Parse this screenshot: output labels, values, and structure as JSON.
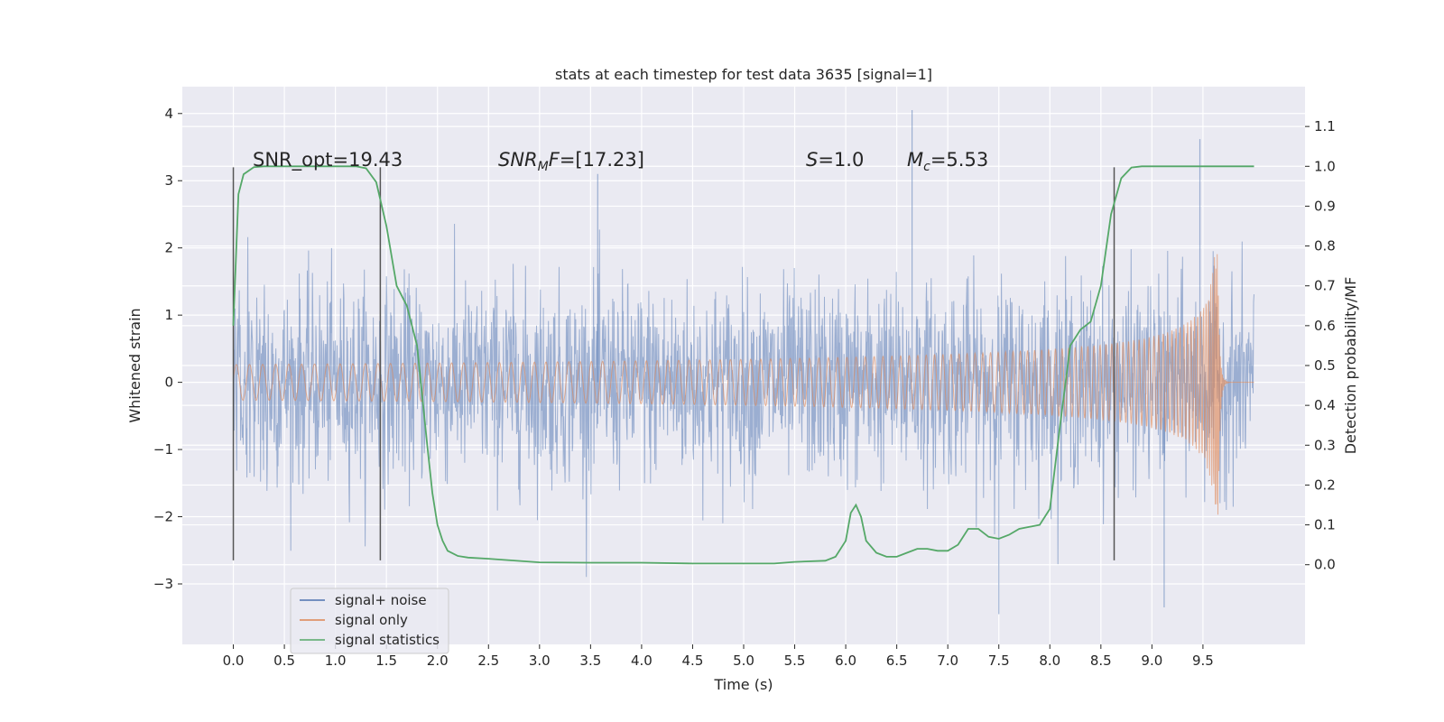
{
  "chart_data": {
    "type": "line",
    "title": "stats at each timestep for test data 3635 [signal=1]",
    "xlabel": "Time (s)",
    "ylabel": "Whitened strain",
    "ylabel_right": "Detection probability/MF",
    "xlim": [
      -0.5,
      10.5
    ],
    "ylim": [
      -3.9,
      4.4
    ],
    "ylim_right": [
      -0.2,
      1.2
    ],
    "x_ticks": [
      0.0,
      0.5,
      1.0,
      1.5,
      2.0,
      2.5,
      3.0,
      3.5,
      4.0,
      4.5,
      5.0,
      5.5,
      6.0,
      6.5,
      7.0,
      7.5,
      8.0,
      8.5,
      9.0,
      9.5
    ],
    "x_tick_labels": [
      "0.0",
      "0.5",
      "1.0",
      "1.5",
      "2.0",
      "2.5",
      "3.0",
      "3.5",
      "4.0",
      "4.5",
      "5.0",
      "5.5",
      "6.0",
      "6.5",
      "7.0",
      "7.5",
      "8.0",
      "8.5",
      "9.0",
      "9.5"
    ],
    "y_ticks": [
      -3,
      -2,
      -1,
      0,
      1,
      2,
      3,
      4
    ],
    "y_tick_labels": [
      "−3",
      "−2",
      "−1",
      "0",
      "1",
      "2",
      "3",
      "4"
    ],
    "y_right_ticks": [
      0.0,
      0.1,
      0.2,
      0.3,
      0.4,
      0.5,
      0.6,
      0.7,
      0.8,
      0.9,
      1.0,
      1.1
    ],
    "y_right_tick_labels": [
      "0.0",
      "0.1",
      "0.2",
      "0.3",
      "0.4",
      "0.5",
      "0.6",
      "0.7",
      "0.8",
      "0.9",
      "1.0",
      "1.1"
    ],
    "grid": true,
    "legend_position": "lower-left",
    "series": [
      {
        "name": "signal+ noise",
        "axis": "left",
        "color": "#4c72b0",
        "description_values": "dense whitened noise, bulk within about ±1.5, spikes up to about 4.05 (near t=6.65) and down to about -3.4",
        "approx_envelope": {
          "t": [
            0.0,
            10.0
          ],
          "max": 4.05,
          "min": -3.45
        }
      },
      {
        "name": "signal only",
        "axis": "left",
        "color": "#dd8452",
        "chirp": {
          "t_start": 0.0,
          "t_merge": 9.65,
          "t_end": 10.0,
          "peak_amplitude": 2.0,
          "early_amplitude": 0.02
        }
      },
      {
        "name": "signal statistics",
        "axis": "right",
        "color": "#55a868",
        "x": [
          0.0,
          0.05,
          0.1,
          0.2,
          0.3,
          0.5,
          0.8,
          1.0,
          1.2,
          1.3,
          1.4,
          1.5,
          1.6,
          1.7,
          1.8,
          1.9,
          1.95,
          2.0,
          2.05,
          2.1,
          2.2,
          2.3,
          2.5,
          3.0,
          3.5,
          4.0,
          4.5,
          5.0,
          5.3,
          5.5,
          5.8,
          5.9,
          6.0,
          6.05,
          6.1,
          6.15,
          6.2,
          6.3,
          6.4,
          6.5,
          6.6,
          6.7,
          6.8,
          6.9,
          7.0,
          7.1,
          7.2,
          7.3,
          7.4,
          7.5,
          7.6,
          7.7,
          7.8,
          7.9,
          8.0,
          8.1,
          8.2,
          8.3,
          8.4,
          8.5,
          8.6,
          8.7,
          8.8,
          8.9,
          9.0,
          9.5,
          10.0
        ],
        "y": [
          0.6,
          0.93,
          0.98,
          0.998,
          1.0,
          1.0,
          1.0,
          1.0,
          1.0,
          0.995,
          0.96,
          0.85,
          0.7,
          0.65,
          0.55,
          0.3,
          0.18,
          0.1,
          0.06,
          0.035,
          0.022,
          0.018,
          0.015,
          0.006,
          0.005,
          0.005,
          0.003,
          0.003,
          0.003,
          0.007,
          0.01,
          0.02,
          0.06,
          0.13,
          0.15,
          0.12,
          0.06,
          0.03,
          0.02,
          0.02,
          0.03,
          0.04,
          0.04,
          0.035,
          0.035,
          0.05,
          0.09,
          0.09,
          0.07,
          0.065,
          0.075,
          0.09,
          0.095,
          0.1,
          0.14,
          0.35,
          0.55,
          0.59,
          0.61,
          0.7,
          0.88,
          0.97,
          0.997,
          1.0,
          1.0,
          1.0,
          1.0
        ]
      }
    ],
    "vertical_markers": {
      "x": [
        0.0,
        1.44,
        8.63
      ],
      "color": "#555555",
      "ymin": -2.65,
      "ymax": 3.2
    },
    "annotations": [
      {
        "text": "SNR_opt=19.43",
        "x": 0.2,
        "y": 3.2
      },
      {
        "text": "SNR_MF=[17.23]",
        "x": 2.6,
        "y": 3.2
      },
      {
        "text": "S=1.0",
        "x": 5.6,
        "y": 3.2
      },
      {
        "text": "M_c=5.53",
        "x": 6.6,
        "y": 3.2
      }
    ]
  },
  "annotation_parts": {
    "snr_opt": "SNR_opt=19.43",
    "snr_mf_base": "SNR",
    "snr_mf_sub": "M",
    "snr_mf_rest": "F",
    "snr_mf_value": "=[17.23]",
    "s_var": "S",
    "s_value": "=1.0",
    "mc_var": "M",
    "mc_sub": "c",
    "mc_value": "=5.53"
  },
  "legend": {
    "items": [
      {
        "label": "signal+ noise",
        "color": "#4c72b0"
      },
      {
        "label": "signal only",
        "color": "#dd8452"
      },
      {
        "label": "signal statistics",
        "color": "#55a868"
      }
    ]
  },
  "colors": {
    "plot_bg": "#eaeaf2",
    "grid": "#ffffff",
    "text": "#262626"
  }
}
